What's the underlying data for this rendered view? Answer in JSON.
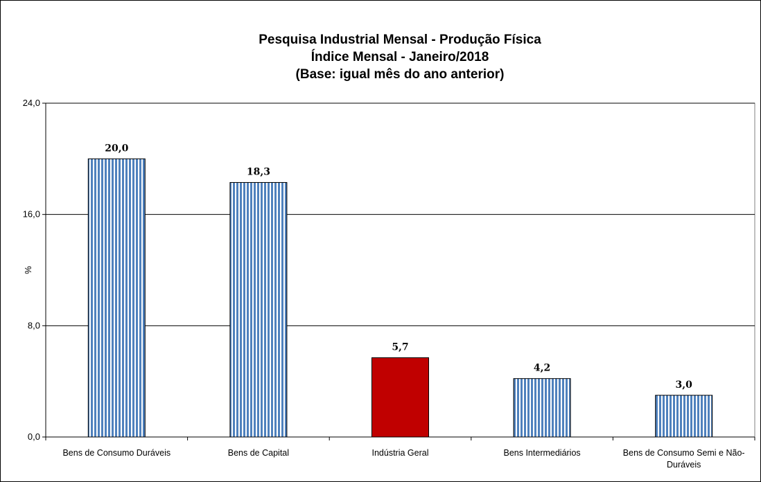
{
  "chart_data": {
    "type": "bar",
    "title": [
      "Pesquisa Industrial Mensal - Produção Física",
      "Índice Mensal - Janeiro/2018",
      "(Base: igual mês do ano anterior)"
    ],
    "ylabel": "%",
    "xlabel": "",
    "ylim": [
      0,
      24
    ],
    "yticks": [
      "0,0",
      "8,0",
      "16,0",
      "24,0"
    ],
    "ytick_values": [
      0,
      8,
      16,
      24
    ],
    "grid": true,
    "categories": [
      [
        "Bens de Consumo Duráveis"
      ],
      [
        "Bens de Capital"
      ],
      [
        "Indústria Geral"
      ],
      [
        "Bens Intermediários"
      ],
      [
        "Bens de Consumo Semi e Não-",
        "Duráveis"
      ]
    ],
    "values": [
      20.0,
      18.3,
      5.7,
      4.2,
      3.0
    ],
    "value_labels": [
      "20,0",
      "18,3",
      "5,7",
      "4,2",
      "3,0"
    ],
    "bar_styles": [
      "striped",
      "striped",
      "solid",
      "striped",
      "striped"
    ],
    "colors": {
      "stripe": "#4f81bd",
      "highlight": "#c00000",
      "grid": "#000000",
      "frame": "#808080"
    }
  }
}
